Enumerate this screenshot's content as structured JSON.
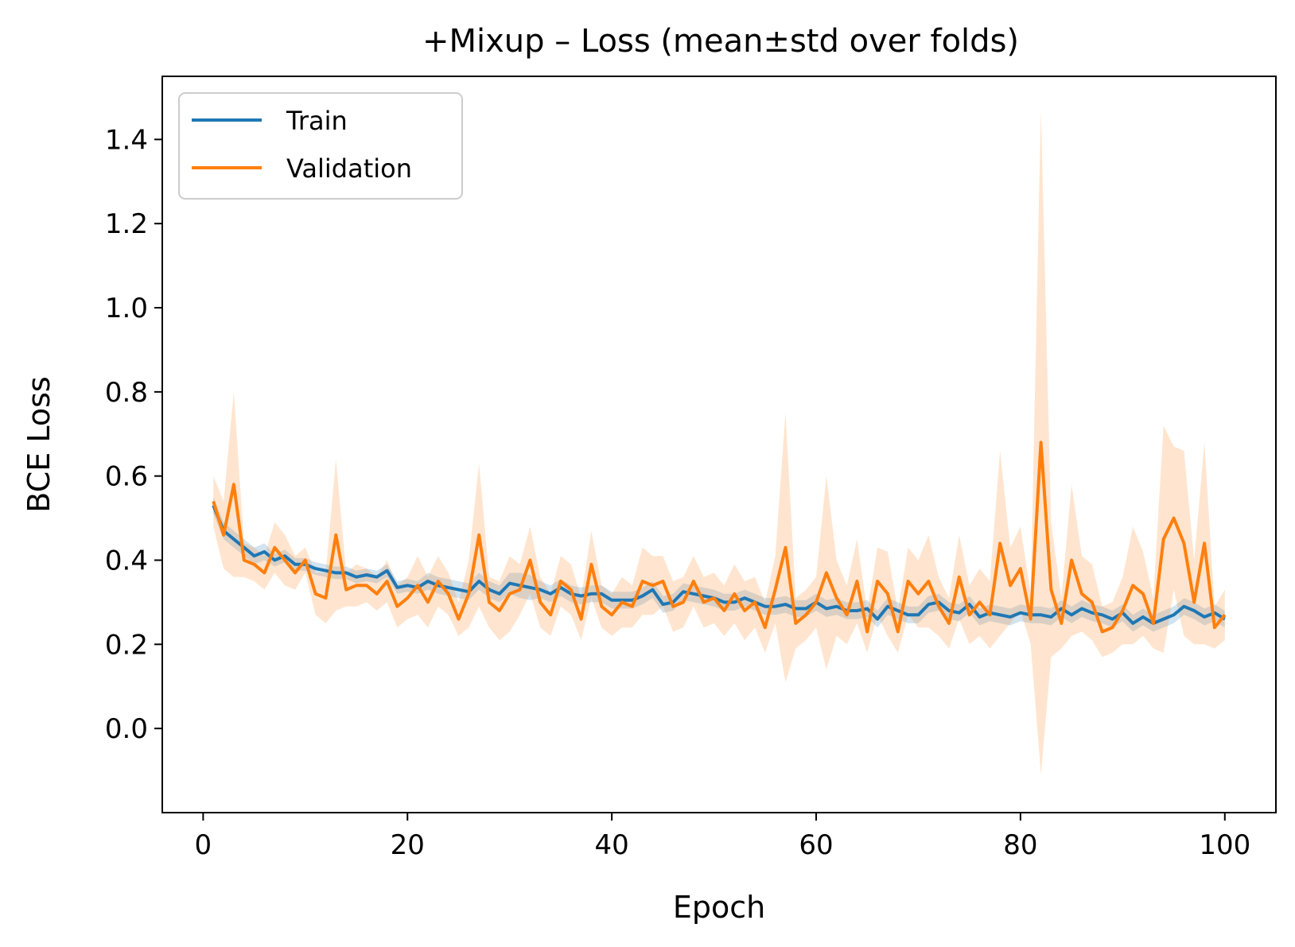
{
  "chart_data": {
    "type": "line",
    "title": "+Mixup – Loss (mean±std over folds)",
    "xlabel": "Epoch",
    "ylabel": "BCE Loss",
    "xlim": [
      -4,
      105
    ],
    "ylim": [
      -0.2,
      1.55
    ],
    "xticks": [
      0,
      20,
      40,
      60,
      80,
      100
    ],
    "yticks": [
      0.0,
      0.2,
      0.4,
      0.6,
      0.8,
      1.0,
      1.2,
      1.4
    ],
    "ytick_labels": [
      "0.0",
      "0.2",
      "0.4",
      "0.6",
      "0.8",
      "1.0",
      "1.2",
      "1.4"
    ],
    "grid": false,
    "legend": {
      "position": "upper-left",
      "entries": [
        "Train",
        "Validation"
      ]
    },
    "series": [
      {
        "name": "Train",
        "color": "#1f77b4",
        "x": [
          1,
          2,
          3,
          4,
          5,
          6,
          7,
          8,
          9,
          10,
          11,
          12,
          13,
          14,
          15,
          16,
          17,
          18,
          19,
          20,
          21,
          22,
          23,
          24,
          25,
          26,
          27,
          28,
          29,
          30,
          31,
          32,
          33,
          34,
          35,
          36,
          37,
          38,
          39,
          40,
          41,
          42,
          43,
          44,
          45,
          46,
          47,
          48,
          49,
          50,
          51,
          52,
          53,
          54,
          55,
          56,
          57,
          58,
          59,
          60,
          61,
          62,
          63,
          64,
          65,
          66,
          67,
          68,
          69,
          70,
          71,
          72,
          73,
          74,
          75,
          76,
          77,
          78,
          79,
          80,
          81,
          82,
          83,
          84,
          85,
          86,
          87,
          88,
          89,
          90,
          91,
          92,
          93,
          94,
          95,
          96,
          97,
          98,
          99,
          100
        ],
        "mean": [
          0.53,
          0.47,
          0.45,
          0.43,
          0.41,
          0.42,
          0.4,
          0.41,
          0.39,
          0.39,
          0.38,
          0.375,
          0.37,
          0.37,
          0.36,
          0.365,
          0.36,
          0.375,
          0.335,
          0.34,
          0.335,
          0.35,
          0.34,
          0.335,
          0.33,
          0.325,
          0.35,
          0.33,
          0.32,
          0.345,
          0.34,
          0.335,
          0.33,
          0.32,
          0.335,
          0.32,
          0.315,
          0.32,
          0.32,
          0.305,
          0.305,
          0.305,
          0.315,
          0.33,
          0.295,
          0.3,
          0.325,
          0.32,
          0.315,
          0.31,
          0.3,
          0.3,
          0.31,
          0.3,
          0.29,
          0.29,
          0.295,
          0.285,
          0.285,
          0.3,
          0.285,
          0.29,
          0.28,
          0.28,
          0.285,
          0.26,
          0.29,
          0.28,
          0.27,
          0.27,
          0.295,
          0.3,
          0.28,
          0.275,
          0.295,
          0.265,
          0.275,
          0.27,
          0.265,
          0.275,
          0.27,
          0.27,
          0.265,
          0.285,
          0.27,
          0.285,
          0.275,
          0.27,
          0.26,
          0.275,
          0.25,
          0.265,
          0.25,
          0.26,
          0.27,
          0.29,
          0.28,
          0.265,
          0.275,
          0.26
        ],
        "std": [
          0.02,
          0.02,
          0.02,
          0.02,
          0.02,
          0.02,
          0.015,
          0.015,
          0.015,
          0.015,
          0.015,
          0.015,
          0.015,
          0.015,
          0.015,
          0.015,
          0.015,
          0.015,
          0.015,
          0.015,
          0.015,
          0.02,
          0.02,
          0.02,
          0.02,
          0.02,
          0.02,
          0.02,
          0.02,
          0.025,
          0.03,
          0.03,
          0.02,
          0.02,
          0.02,
          0.02,
          0.02,
          0.02,
          0.02,
          0.02,
          0.02,
          0.02,
          0.02,
          0.02,
          0.02,
          0.02,
          0.02,
          0.02,
          0.02,
          0.02,
          0.02,
          0.02,
          0.02,
          0.02,
          0.02,
          0.02,
          0.02,
          0.02,
          0.02,
          0.02,
          0.02,
          0.02,
          0.02,
          0.02,
          0.02,
          0.02,
          0.02,
          0.02,
          0.02,
          0.02,
          0.02,
          0.02,
          0.02,
          0.02,
          0.02,
          0.02,
          0.02,
          0.02,
          0.02,
          0.02,
          0.02,
          0.02,
          0.02,
          0.02,
          0.02,
          0.02,
          0.02,
          0.02,
          0.02,
          0.02,
          0.02,
          0.02,
          0.02,
          0.02,
          0.02,
          0.02,
          0.02,
          0.02,
          0.02,
          0.02
        ]
      },
      {
        "name": "Validation",
        "color": "#ff7f0e",
        "x": [
          1,
          2,
          3,
          4,
          5,
          6,
          7,
          8,
          9,
          10,
          11,
          12,
          13,
          14,
          15,
          16,
          17,
          18,
          19,
          20,
          21,
          22,
          23,
          24,
          25,
          26,
          27,
          28,
          29,
          30,
          31,
          32,
          33,
          34,
          35,
          36,
          37,
          38,
          39,
          40,
          41,
          42,
          43,
          44,
          45,
          46,
          47,
          48,
          49,
          50,
          51,
          52,
          53,
          54,
          55,
          56,
          57,
          58,
          59,
          60,
          61,
          62,
          63,
          64,
          65,
          66,
          67,
          68,
          69,
          70,
          71,
          72,
          73,
          74,
          75,
          76,
          77,
          78,
          79,
          80,
          81,
          82,
          83,
          84,
          85,
          86,
          87,
          88,
          89,
          90,
          91,
          92,
          93,
          94,
          95,
          96,
          97,
          98,
          99,
          100
        ],
        "mean": [
          0.54,
          0.46,
          0.58,
          0.4,
          0.39,
          0.37,
          0.43,
          0.4,
          0.37,
          0.4,
          0.32,
          0.31,
          0.46,
          0.33,
          0.34,
          0.34,
          0.32,
          0.35,
          0.29,
          0.31,
          0.34,
          0.3,
          0.35,
          0.32,
          0.26,
          0.32,
          0.46,
          0.3,
          0.28,
          0.32,
          0.33,
          0.4,
          0.3,
          0.27,
          0.35,
          0.33,
          0.26,
          0.39,
          0.29,
          0.27,
          0.3,
          0.29,
          0.35,
          0.34,
          0.35,
          0.29,
          0.3,
          0.35,
          0.3,
          0.31,
          0.28,
          0.32,
          0.28,
          0.3,
          0.24,
          0.33,
          0.43,
          0.25,
          0.27,
          0.3,
          0.37,
          0.31,
          0.27,
          0.35,
          0.23,
          0.35,
          0.32,
          0.23,
          0.35,
          0.32,
          0.35,
          0.29,
          0.25,
          0.36,
          0.27,
          0.3,
          0.27,
          0.44,
          0.34,
          0.38,
          0.26,
          0.68,
          0.33,
          0.25,
          0.4,
          0.32,
          0.3,
          0.23,
          0.24,
          0.28,
          0.34,
          0.32,
          0.25,
          0.45,
          0.5,
          0.44,
          0.3,
          0.44,
          0.24,
          0.27
        ],
        "std": [
          0.06,
          0.08,
          0.22,
          0.04,
          0.04,
          0.04,
          0.06,
          0.06,
          0.04,
          0.03,
          0.05,
          0.06,
          0.18,
          0.04,
          0.05,
          0.04,
          0.04,
          0.05,
          0.05,
          0.05,
          0.07,
          0.06,
          0.06,
          0.05,
          0.04,
          0.08,
          0.17,
          0.06,
          0.07,
          0.09,
          0.06,
          0.08,
          0.06,
          0.05,
          0.06,
          0.06,
          0.05,
          0.08,
          0.05,
          0.05,
          0.06,
          0.05,
          0.08,
          0.07,
          0.06,
          0.06,
          0.06,
          0.06,
          0.06,
          0.06,
          0.06,
          0.07,
          0.07,
          0.06,
          0.06,
          0.08,
          0.32,
          0.06,
          0.06,
          0.06,
          0.23,
          0.09,
          0.07,
          0.1,
          0.05,
          0.08,
          0.1,
          0.05,
          0.08,
          0.08,
          0.11,
          0.07,
          0.06,
          0.1,
          0.07,
          0.08,
          0.08,
          0.22,
          0.09,
          0.1,
          0.06,
          0.79,
          0.16,
          0.06,
          0.18,
          0.09,
          0.09,
          0.06,
          0.06,
          0.08,
          0.14,
          0.1,
          0.06,
          0.27,
          0.17,
          0.22,
          0.1,
          0.24,
          0.05,
          0.06
        ]
      }
    ]
  }
}
